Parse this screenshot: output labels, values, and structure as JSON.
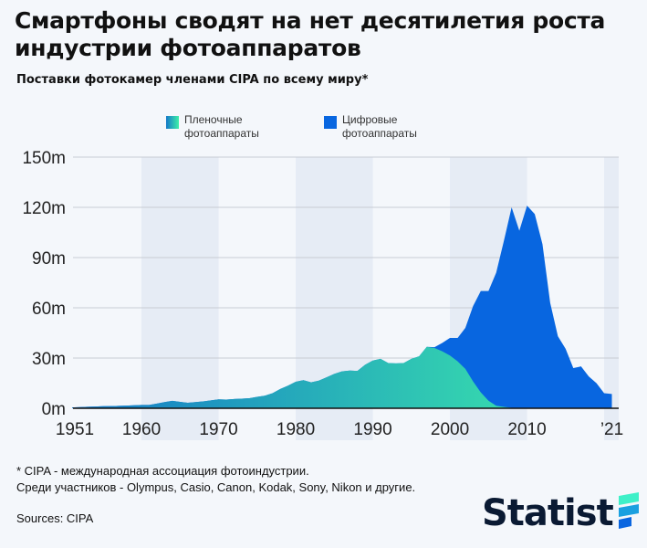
{
  "title": "Смартфоны сводят на нет десятилетия роста индустрии фотоаппаратов",
  "subtitle": "Поставки фотокамер членами CIPA по всему миру*",
  "footnote_1": "* CIPA - международная ассоциация фотоиндустрии.",
  "footnote_2": "Среди участников - Olympus, Casio, Canon, Kodak, Sony, Nikon и другие.",
  "sources": "Sources: CIPA",
  "logo": "Statista",
  "chart_data": {
    "type": "area",
    "stacked": true,
    "ylim": [
      0,
      150
    ],
    "y_ticks": [
      "0m",
      "30m",
      "60m",
      "90m",
      "120m",
      "150m"
    ],
    "y_tick_values": [
      0,
      30,
      60,
      90,
      120,
      150
    ],
    "x_ticks": [
      "1951",
      "1960",
      "1970",
      "1980",
      "1990",
      "2000",
      "2010",
      "’21"
    ],
    "x_tick_values": [
      1951,
      1960,
      1970,
      1980,
      1990,
      2000,
      2010,
      2021
    ],
    "grid": true,
    "legend_placement": "top",
    "x": [
      1951,
      1952,
      1953,
      1954,
      1955,
      1956,
      1957,
      1958,
      1959,
      1960,
      1961,
      1962,
      1963,
      1964,
      1965,
      1966,
      1967,
      1968,
      1969,
      1970,
      1971,
      1972,
      1973,
      1974,
      1975,
      1976,
      1977,
      1978,
      1979,
      1980,
      1981,
      1982,
      1983,
      1984,
      1985,
      1986,
      1987,
      1988,
      1989,
      1990,
      1991,
      1992,
      1993,
      1994,
      1995,
      1996,
      1997,
      1998,
      1999,
      2000,
      2001,
      2002,
      2003,
      2004,
      2005,
      2006,
      2007,
      2008,
      2009,
      2010,
      2011,
      2012,
      2013,
      2014,
      2015,
      2016,
      2017,
      2018,
      2019,
      2020,
      2021
    ],
    "series": [
      {
        "name": "Пленочные фотоаппараты",
        "color_start": "#1478c8",
        "color_end": "#3ef0a8",
        "values": [
          0.5,
          0.7,
          0.9,
          1,
          1.2,
          1.3,
          1.4,
          1.6,
          1.8,
          2,
          2,
          2.8,
          3.7,
          4.4,
          3.8,
          3.3,
          3.7,
          4.1,
          4.7,
          5.3,
          5.2,
          5.5,
          5.7,
          6,
          6.8,
          7.5,
          9,
          11.5,
          13.5,
          15.8,
          16.8,
          15.5,
          16.5,
          18.5,
          20.5,
          22,
          22.5,
          22.3,
          26,
          28.5,
          29.5,
          27,
          26.8,
          27,
          29.5,
          31,
          36.7,
          36,
          34,
          31.5,
          28,
          23.5,
          16,
          9.5,
          4.5,
          1.5,
          0.8,
          0.3,
          0,
          0,
          0,
          0,
          0,
          0,
          0,
          0,
          0,
          0,
          0,
          0,
          0
        ]
      },
      {
        "name": "Цифровые фотоаппараты",
        "color": "#0866e0",
        "values": [
          0,
          0,
          0,
          0,
          0,
          0,
          0,
          0,
          0,
          0,
          0,
          0,
          0,
          0,
          0,
          0,
          0,
          0,
          0,
          0,
          0,
          0,
          0,
          0,
          0,
          0,
          0,
          0,
          0,
          0,
          0,
          0,
          0,
          0,
          0,
          0,
          0,
          0,
          0,
          0,
          0,
          0,
          0,
          0,
          0,
          0,
          0,
          0.5,
          5,
          10.5,
          14,
          24.5,
          45,
          60.5,
          65.5,
          79.5,
          99.2,
          119.7,
          106,
          121,
          116,
          98,
          63,
          43,
          35.5,
          24,
          25,
          19,
          15,
          9,
          8.5
        ]
      }
    ],
    "legend": [
      "Пленочные",
      "фотоаппараты",
      "Цифровые",
      "фотоаппараты"
    ]
  }
}
